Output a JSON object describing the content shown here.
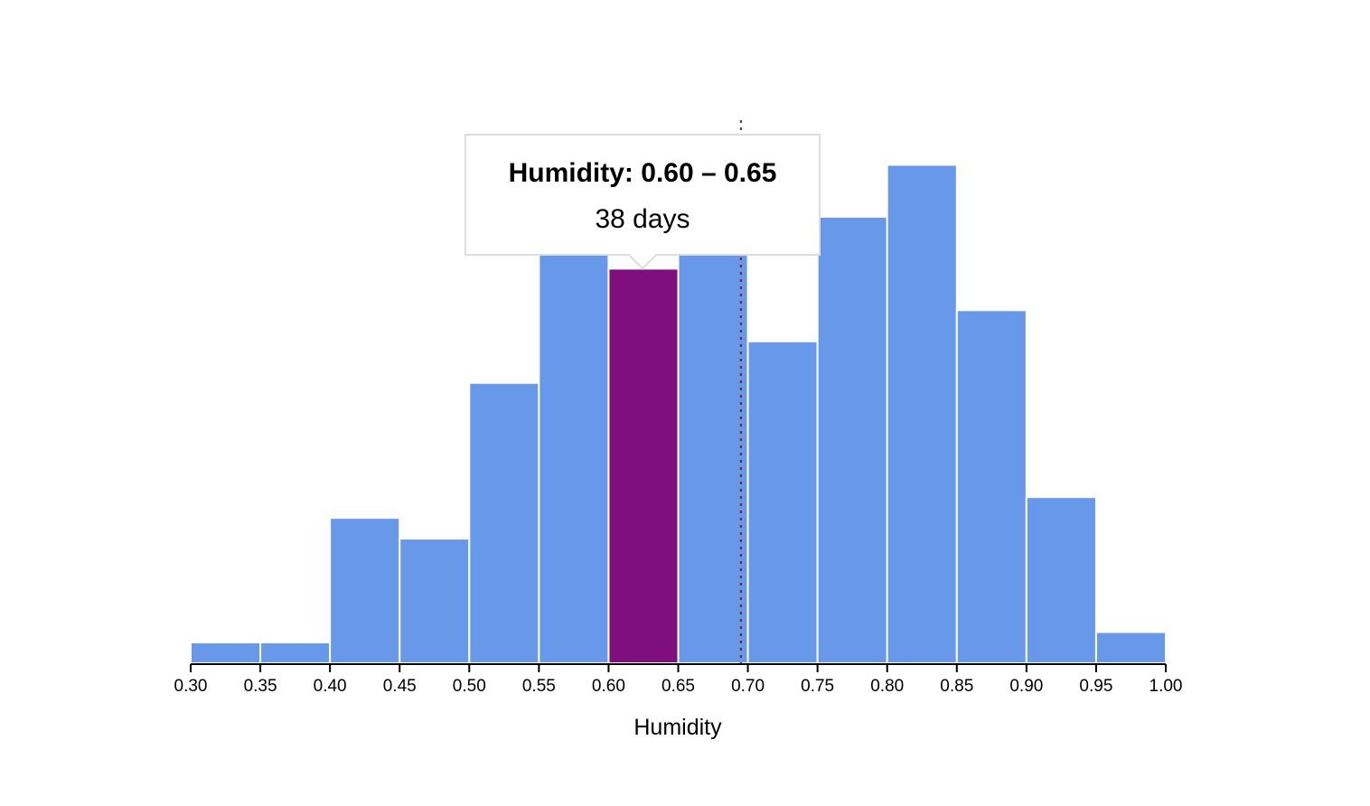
{
  "chart_data": {
    "type": "bar",
    "chart_kind": "histogram",
    "xlabel": "Humidity",
    "xlim": [
      0.3,
      1.0
    ],
    "ylim": [
      0,
      55
    ],
    "bin_width": 0.05,
    "x_ticks": [
      "0.30",
      "0.35",
      "0.40",
      "0.45",
      "0.50",
      "0.55",
      "0.60",
      "0.65",
      "0.70",
      "0.75",
      "0.80",
      "0.85",
      "0.90",
      "0.95",
      "1.00"
    ],
    "bins": [
      {
        "start": 0.3,
        "end": 0.35,
        "count": 2
      },
      {
        "start": 0.35,
        "end": 0.4,
        "count": 2
      },
      {
        "start": 0.4,
        "end": 0.45,
        "count": 14
      },
      {
        "start": 0.45,
        "end": 0.5,
        "count": 12
      },
      {
        "start": 0.5,
        "end": 0.55,
        "count": 27
      },
      {
        "start": 0.55,
        "end": 0.6,
        "count": 41
      },
      {
        "start": 0.6,
        "end": 0.65,
        "count": 38
      },
      {
        "start": 0.65,
        "end": 0.7,
        "count": 41
      },
      {
        "start": 0.7,
        "end": 0.75,
        "count": 31
      },
      {
        "start": 0.75,
        "end": 0.8,
        "count": 43
      },
      {
        "start": 0.8,
        "end": 0.85,
        "count": 48
      },
      {
        "start": 0.85,
        "end": 0.9,
        "count": 34
      },
      {
        "start": 0.9,
        "end": 0.95,
        "count": 16
      },
      {
        "start": 0.95,
        "end": 1.0,
        "count": 3
      }
    ],
    "highlighted_bin": 6,
    "mean_line_x": 0.695,
    "grid": false,
    "colors": {
      "bar": "#6798EA",
      "highlight": "#7F0F7E",
      "bar_stroke": "#ffffff",
      "mean_line": "#8B1A1A",
      "axis": "#000000"
    }
  },
  "tooltip": {
    "title": "Humidity: 0.60 – 0.65",
    "value": "38 days"
  }
}
